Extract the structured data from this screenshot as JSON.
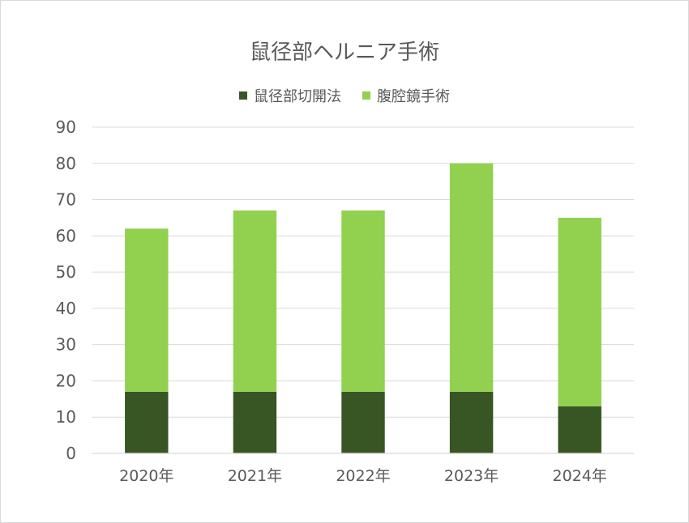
{
  "chart_data": {
    "type": "bar",
    "stacked": true,
    "title": "鼠径部ヘルニア手術",
    "categories": [
      "2020年",
      "2021年",
      "2022年",
      "2023年",
      "2024年"
    ],
    "series": [
      {
        "name": "鼠径部切開法",
        "values": [
          17,
          17,
          17,
          17,
          13
        ],
        "color": "#375623"
      },
      {
        "name": "腹腔鏡手術",
        "values": [
          45,
          50,
          50,
          63,
          52
        ],
        "color": "#92d050"
      }
    ],
    "xlabel": "",
    "ylabel": "",
    "ylim": [
      0,
      90
    ],
    "yticks": [
      0,
      10,
      20,
      30,
      40,
      50,
      60,
      70,
      80,
      90
    ],
    "grid": true,
    "legend_position": "top"
  }
}
